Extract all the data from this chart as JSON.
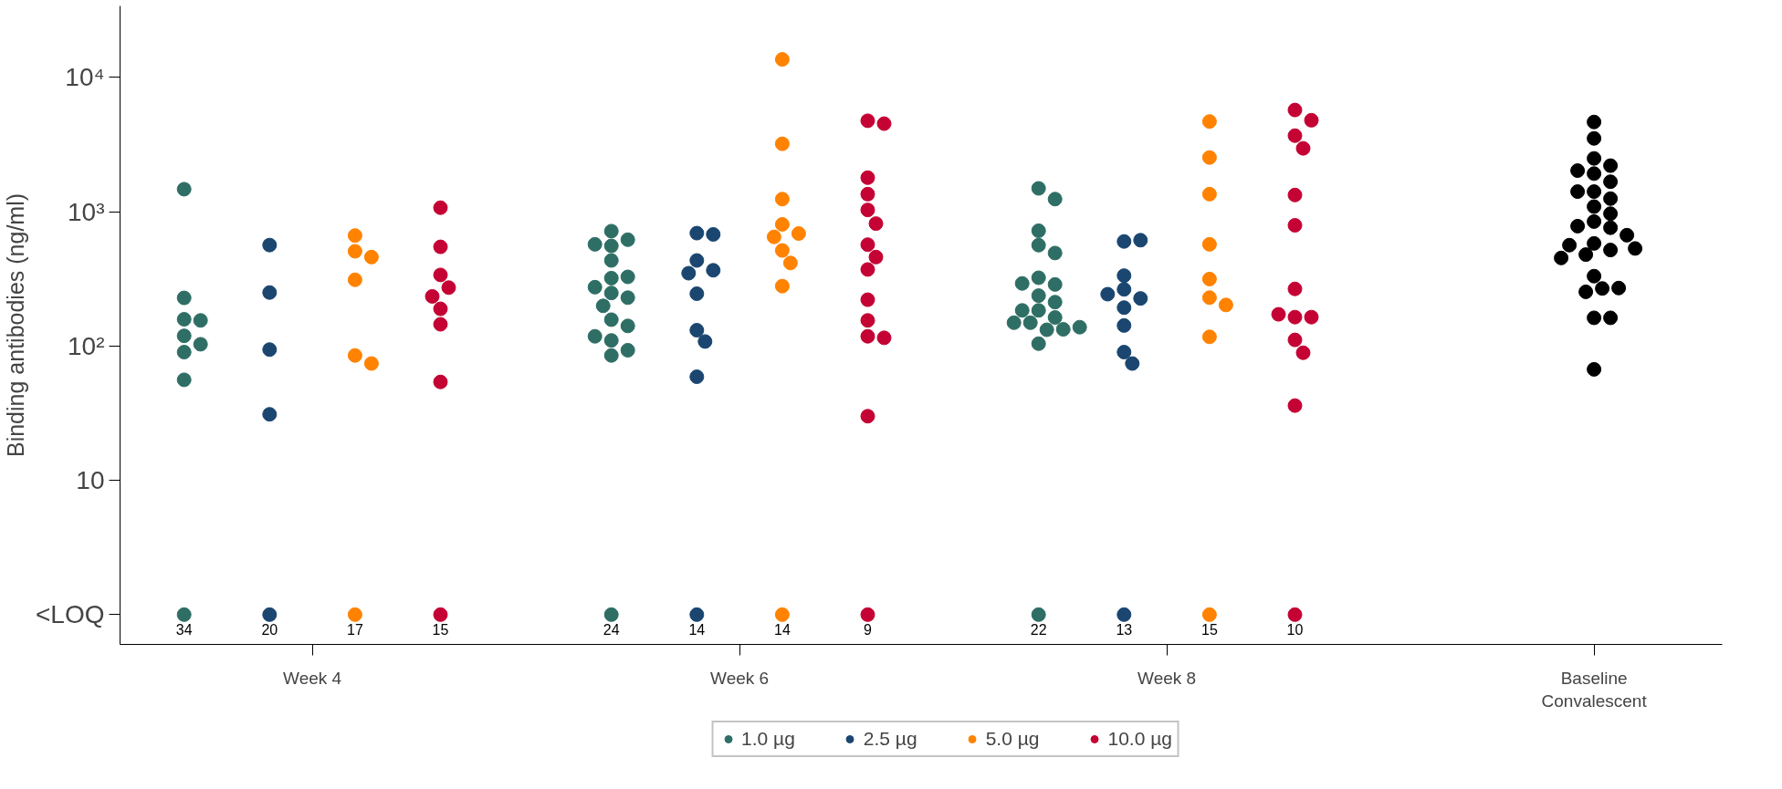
{
  "chart_data": {
    "type": "scatter",
    "ylabel": "Binding antibodies (ng/ml)",
    "log": "y",
    "grid": false,
    "legend": "bottom",
    "marker": "circle",
    "categories": [
      "Week 4",
      "Week 6",
      "Week 8",
      "Baseline\nConvalescent"
    ],
    "ylim": [
      0.6,
      34000
    ],
    "annotations": [
      "34",
      "20",
      "17",
      "15",
      "24",
      "14",
      "14",
      "9",
      "22",
      "13",
      "15",
      "10"
    ],
    "yticks": [
      {
        "value": 1,
        "label": "<LOQ"
      },
      10,
      {
        "value": 100,
        "label": "10²"
      },
      {
        "value": 1000,
        "label": "10³"
      },
      {
        "value": 10000,
        "label": "10⁴"
      }
    ],
    "series": [
      {
        "name": "1.0 µg",
        "color": "#2e6e65",
        "x": [
          "Week 4",
          "Week 4",
          "Week 4",
          "Week 4",
          "Week 4",
          "Week 4",
          "Week 4",
          "Week 4",
          "Week 4",
          "Week 6",
          "Week 6",
          "Week 6",
          "Week 6",
          "Week 6",
          "Week 6",
          "Week 6",
          "Week 6",
          "Week 6",
          "Week 6",
          "Week 6",
          "Week 6",
          "Week 6",
          "Week 6",
          "Week 6",
          "Week 6",
          "Week 6",
          "Week 6",
          "Week 8",
          "Week 8",
          "Week 8",
          "Week 8",
          "Week 8",
          "Week 8",
          "Week 8",
          "Week 8",
          "Week 8",
          "Week 8",
          "Week 8",
          "Week 8",
          "Week 8",
          "Week 8",
          "Week 8",
          "Week 8",
          "Week 8",
          "Week 8",
          "Week 8",
          "Week 8"
        ],
        "values": [
          1470,
          228,
          158,
          155,
          119,
          103,
          90,
          56,
          1,
          716,
          618,
          556,
          571,
          433,
          320,
          327,
          274,
          248,
          229,
          199,
          157,
          141,
          110,
          118,
          93,
          85,
          1,
          1490,
          1240,
          721,
          563,
          492,
          322,
          287,
          292,
          237,
          212,
          184,
          184,
          163,
          149,
          149,
          132,
          133,
          138,
          104,
          1
        ]
      },
      {
        "name": "2.5 µg",
        "color": "#1a4670",
        "x": [
          "Week 4",
          "Week 4",
          "Week 4",
          "Week 4",
          "Week 4",
          "Week 6",
          "Week 6",
          "Week 6",
          "Week 6",
          "Week 6",
          "Week 6",
          "Week 6",
          "Week 6",
          "Week 6",
          "Week 6",
          "Week 8",
          "Week 8",
          "Week 8",
          "Week 8",
          "Week 8",
          "Week 8",
          "Week 8",
          "Week 8",
          "Week 8",
          "Week 8",
          "Week 8"
        ],
        "values": [
          564,
          250,
          94,
          31,
          1,
          692,
          677,
          433,
          366,
          348,
          245,
          131,
          108,
          59,
          1,
          600,
          613,
          334,
          264,
          226,
          243,
          193,
          142,
          90,
          74,
          1
        ]
      },
      {
        "name": "5.0 µg",
        "color": "#ff8200",
        "x": [
          "Week 4",
          "Week 4",
          "Week 4",
          "Week 4",
          "Week 4",
          "Week 4",
          "Week 4",
          "Week 6",
          "Week 6",
          "Week 6",
          "Week 6",
          "Week 6",
          "Week 6",
          "Week 6",
          "Week 6",
          "Week 6",
          "Week 6",
          "Week 8",
          "Week 8",
          "Week 8",
          "Week 8",
          "Week 8",
          "Week 8",
          "Week 8",
          "Week 8",
          "Week 8"
        ],
        "values": [
          664,
          507,
          459,
          311,
          85,
          74,
          1,
          13600,
          3200,
          1240,
          804,
          687,
          649,
          514,
          415,
          279,
          1,
          4690,
          2530,
          1350,
          571,
          315,
          229,
          202,
          117,
          1
        ]
      },
      {
        "name": "10.0 µg",
        "color": "#c40233",
        "x": [
          "Week 4",
          "Week 4",
          "Week 4",
          "Week 4",
          "Week 4",
          "Week 4",
          "Week 4",
          "Week 4",
          "Week 4",
          "Week 6",
          "Week 6",
          "Week 6",
          "Week 6",
          "Week 6",
          "Week 6",
          "Week 6",
          "Week 6",
          "Week 6",
          "Week 6",
          "Week 6",
          "Week 6",
          "Week 6",
          "Week 6",
          "Week 6",
          "Week 8",
          "Week 8",
          "Week 8",
          "Week 8",
          "Week 8",
          "Week 8",
          "Week 8",
          "Week 8",
          "Week 8",
          "Week 8",
          "Week 8",
          "Week 8",
          "Week 8",
          "Week 8"
        ],
        "values": [
          1070,
          547,
          338,
          272,
          234,
          189,
          145,
          54,
          1,
          4750,
          4520,
          1790,
          1350,
          1030,
          815,
          568,
          459,
          371,
          221,
          155,
          118,
          115,
          30,
          1,
          5710,
          4790,
          3680,
          2960,
          1330,
          791,
          266,
          164,
          164,
          172,
          111,
          89,
          36,
          1
        ]
      },
      {
        "color": "#000000",
        "x": [
          "Baseline\nConvalescent",
          "Baseline\nConvalescent",
          "Baseline\nConvalescent",
          "Baseline\nConvalescent",
          "Baseline\nConvalescent",
          "Baseline\nConvalescent",
          "Baseline\nConvalescent",
          "Baseline\nConvalescent",
          "Baseline\nConvalescent",
          "Baseline\nConvalescent",
          "Baseline\nConvalescent",
          "Baseline\nConvalescent",
          "Baseline\nConvalescent",
          "Baseline\nConvalescent",
          "Baseline\nConvalescent",
          "Baseline\nConvalescent",
          "Baseline\nConvalescent",
          "Baseline\nConvalescent",
          "Baseline\nConvalescent",
          "Baseline\nConvalescent",
          "Baseline\nConvalescent",
          "Baseline\nConvalescent",
          "Baseline\nConvalescent",
          "Baseline\nConvalescent",
          "Baseline\nConvalescent",
          "Baseline\nConvalescent",
          "Baseline\nConvalescent",
          "Baseline\nConvalescent",
          "Baseline\nConvalescent"
        ],
        "values": [
          4650,
          3510,
          2490,
          2200,
          1920,
          2020,
          1670,
          1410,
          1410,
          1250,
          1090,
          966,
          844,
          780,
          759,
          668,
          580,
          518,
          479,
          563,
          532,
          452,
          331,
          268,
          253,
          270,
          162,
          162,
          67
        ]
      }
    ]
  }
}
